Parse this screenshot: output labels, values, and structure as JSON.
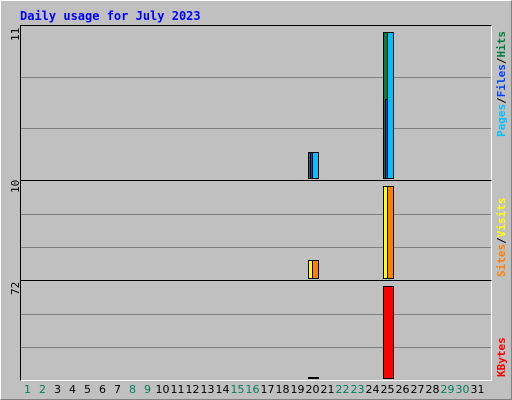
{
  "chart_data": {
    "type": "bar",
    "title": "Daily usage for July 2023",
    "days": [
      "1",
      "2",
      "3",
      "4",
      "5",
      "6",
      "7",
      "8",
      "9",
      "10",
      "11",
      "12",
      "13",
      "14",
      "15",
      "16",
      "17",
      "18",
      "19",
      "20",
      "21",
      "22",
      "23",
      "24",
      "25",
      "26",
      "27",
      "28",
      "29",
      "30",
      "31"
    ],
    "weekend_days": [
      1,
      2,
      8,
      9,
      15,
      16,
      22,
      23,
      29,
      30
    ],
    "panels": [
      {
        "name": "hits-files-pages",
        "ymax_label": "11",
        "ymax": 11,
        "legend": [
          {
            "text": "Pages",
            "color": "#00c0ff"
          },
          {
            "text": "/",
            "color": "#000000"
          },
          {
            "text": "Files",
            "color": "#0040ff"
          },
          {
            "text": "/",
            "color": "#000000"
          },
          {
            "text": "Hits",
            "color": "#008040"
          }
        ],
        "series": [
          {
            "name": "Hits",
            "color": "#008040",
            "values": [
              0,
              0,
              0,
              0,
              0,
              0,
              0,
              0,
              0,
              0,
              0,
              0,
              0,
              0,
              0,
              0,
              0,
              0,
              0,
              2,
              0,
              0,
              0,
              0,
              11,
              0,
              0,
              0,
              0,
              0,
              0
            ]
          },
          {
            "name": "Files",
            "color": "#0040ff",
            "values": [
              0,
              0,
              0,
              0,
              0,
              0,
              0,
              0,
              0,
              0,
              0,
              0,
              0,
              0,
              0,
              0,
              0,
              0,
              0,
              2,
              0,
              0,
              0,
              0,
              6,
              0,
              0,
              0,
              0,
              0,
              0
            ]
          },
          {
            "name": "Pages",
            "color": "#00c0ff",
            "values": [
              0,
              0,
              0,
              0,
              0,
              0,
              0,
              0,
              0,
              0,
              0,
              0,
              0,
              0,
              0,
              0,
              0,
              0,
              0,
              2,
              0,
              0,
              0,
              0,
              11,
              0,
              0,
              0,
              0,
              0,
              0
            ]
          }
        ]
      },
      {
        "name": "visits-sites",
        "ymax_label": "10",
        "ymax": 10,
        "legend": [
          {
            "text": "Sites",
            "color": "#ff8000"
          },
          {
            "text": "/",
            "color": "#000000"
          },
          {
            "text": "Visits",
            "color": "#ffff00"
          }
        ],
        "series": [
          {
            "name": "Visits",
            "color": "#ffff00",
            "values": [
              0,
              0,
              0,
              0,
              0,
              0,
              0,
              0,
              0,
              0,
              0,
              0,
              0,
              0,
              0,
              0,
              0,
              0,
              0,
              2,
              0,
              0,
              0,
              0,
              10,
              0,
              0,
              0,
              0,
              0,
              0
            ]
          },
          {
            "name": "Sites",
            "color": "#ff8000",
            "values": [
              0,
              0,
              0,
              0,
              0,
              0,
              0,
              0,
              0,
              0,
              0,
              0,
              0,
              0,
              0,
              0,
              0,
              0,
              0,
              2,
              0,
              0,
              0,
              0,
              10,
              0,
              0,
              0,
              0,
              0,
              0
            ]
          }
        ]
      },
      {
        "name": "kbytes",
        "ymax_label": "72",
        "ymax": 72,
        "legend": [
          {
            "text": "KBytes",
            "color": "#ff0000"
          }
        ],
        "series": [
          {
            "name": "KBytes",
            "color": "#ff0000",
            "values": [
              0,
              0,
              0,
              0,
              0,
              0,
              0,
              0,
              0,
              0,
              0,
              0,
              0,
              0,
              0,
              0,
              0,
              0,
              0,
              1,
              0,
              0,
              0,
              0,
              72,
              0,
              0,
              0,
              0,
              0,
              0
            ]
          }
        ]
      }
    ]
  },
  "colors": {
    "title": "#0000ff",
    "weekday_label": "#000000",
    "weekend_label": "#00805c"
  }
}
